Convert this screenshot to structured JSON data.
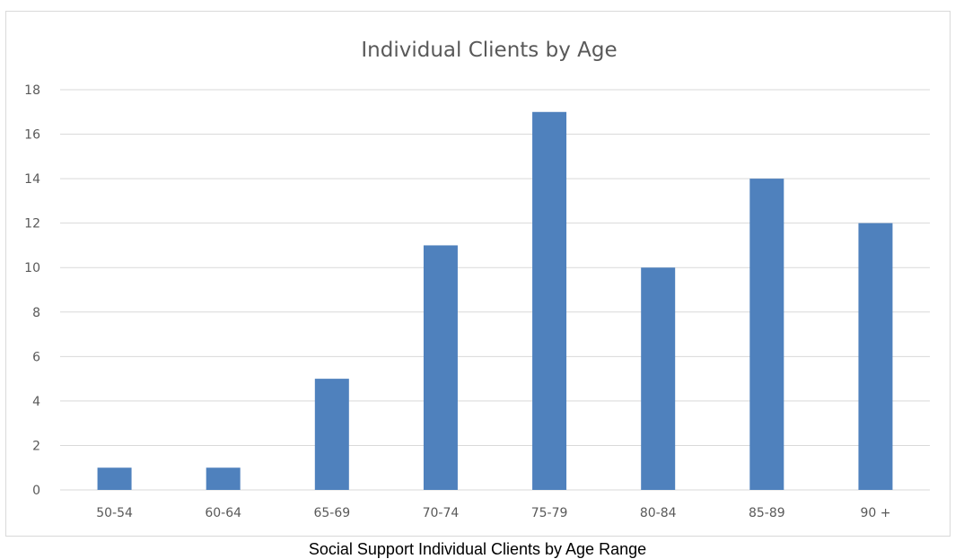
{
  "chart_data": {
    "type": "bar",
    "title": "Individual Clients by Age",
    "categories": [
      "50-54",
      "60-64",
      "65-69",
      "70-74",
      "75-79",
      "80-84",
      "85-89",
      "90 +"
    ],
    "series": [
      {
        "values": [
          1,
          1,
          5,
          11,
          17,
          10,
          14,
          12
        ]
      }
    ],
    "ylim": [
      0,
      18
    ],
    "yticks": [
      0,
      2,
      4,
      6,
      8,
      10,
      12,
      14,
      16,
      18
    ],
    "grid": true,
    "legend": "none",
    "bar_color": "#4f81bd",
    "grid_color": "#d9d9d9"
  },
  "caption": "Social Support Individual Clients by Age Range"
}
